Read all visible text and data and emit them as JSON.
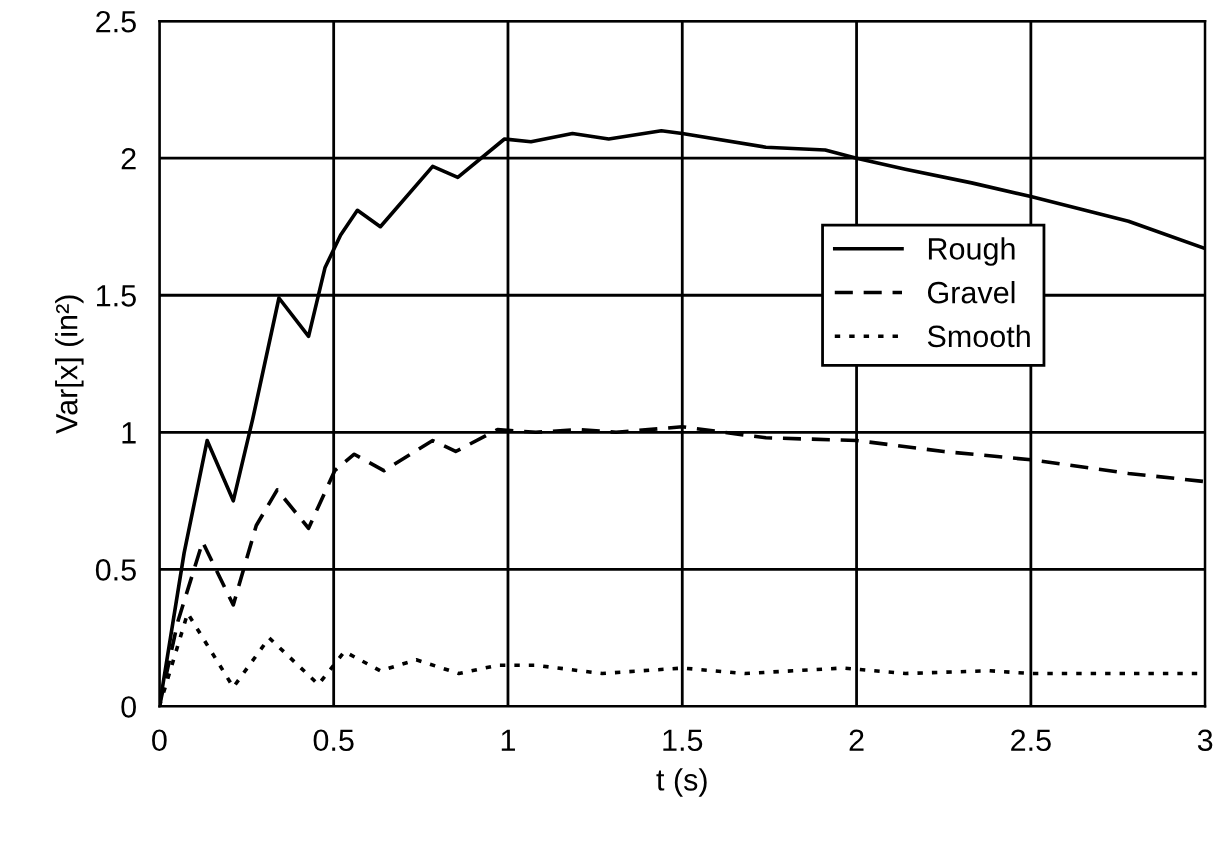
{
  "chart_data": {
    "type": "line",
    "xlabel": "t (s)",
    "ylabel": "Var[x] (in²)",
    "xlim": [
      0,
      3
    ],
    "ylim": [
      0,
      2.5
    ],
    "xticks": [
      0,
      0.5,
      1,
      1.5,
      2,
      2.5,
      3
    ],
    "yticks": [
      0,
      0.5,
      1,
      1.5,
      2,
      2.5
    ],
    "grid": true,
    "legend": "center right",
    "marker": "none",
    "series": [
      {
        "name": "Rough",
        "color": "#000000",
        "line_style": "solid",
        "x": [
          0,
          0.071,
          0.137,
          0.212,
          0.268,
          0.343,
          0.428,
          0.475,
          0.52,
          0.568,
          0.634,
          0.784,
          0.856,
          0.99,
          1.066,
          1.185,
          1.289,
          1.44,
          1.5,
          1.74,
          1.91,
          2.0,
          2.14,
          2.33,
          2.5,
          2.78,
          3.0
        ],
        "values": [
          0,
          0.56,
          0.97,
          0.75,
          1.05,
          1.49,
          1.35,
          1.6,
          1.72,
          1.81,
          1.75,
          1.97,
          1.93,
          2.07,
          2.06,
          2.09,
          2.07,
          2.1,
          2.09,
          2.04,
          2.03,
          2.0,
          1.96,
          1.91,
          1.86,
          1.77,
          1.67
        ]
      },
      {
        "name": "Gravel",
        "color": "#000000",
        "line_style": "dashed",
        "x": [
          0,
          0.053,
          0.124,
          0.212,
          0.278,
          0.338,
          0.428,
          0.503,
          0.559,
          0.644,
          0.784,
          0.85,
          0.97,
          1.08,
          1.2,
          1.31,
          1.5,
          1.74,
          2.0,
          2.25,
          2.5,
          2.78,
          3.0
        ],
        "values": [
          0,
          0.31,
          0.6,
          0.37,
          0.66,
          0.79,
          0.65,
          0.86,
          0.92,
          0.86,
          0.97,
          0.93,
          1.01,
          1.0,
          1.01,
          1.0,
          1.02,
          0.98,
          0.97,
          0.93,
          0.9,
          0.85,
          0.82
        ]
      },
      {
        "name": "Smooth",
        "color": "#000000",
        "line_style": "dotted",
        "x": [
          0,
          0.081,
          0.212,
          0.315,
          0.456,
          0.531,
          0.634,
          0.737,
          0.859,
          0.97,
          1.08,
          1.27,
          1.5,
          1.68,
          1.96,
          2.14,
          2.38,
          2.5,
          3.0
        ],
        "values": [
          0,
          0.34,
          0.07,
          0.25,
          0.08,
          0.2,
          0.13,
          0.17,
          0.12,
          0.15,
          0.15,
          0.12,
          0.14,
          0.12,
          0.14,
          0.12,
          0.13,
          0.12,
          0.12
        ]
      }
    ]
  }
}
